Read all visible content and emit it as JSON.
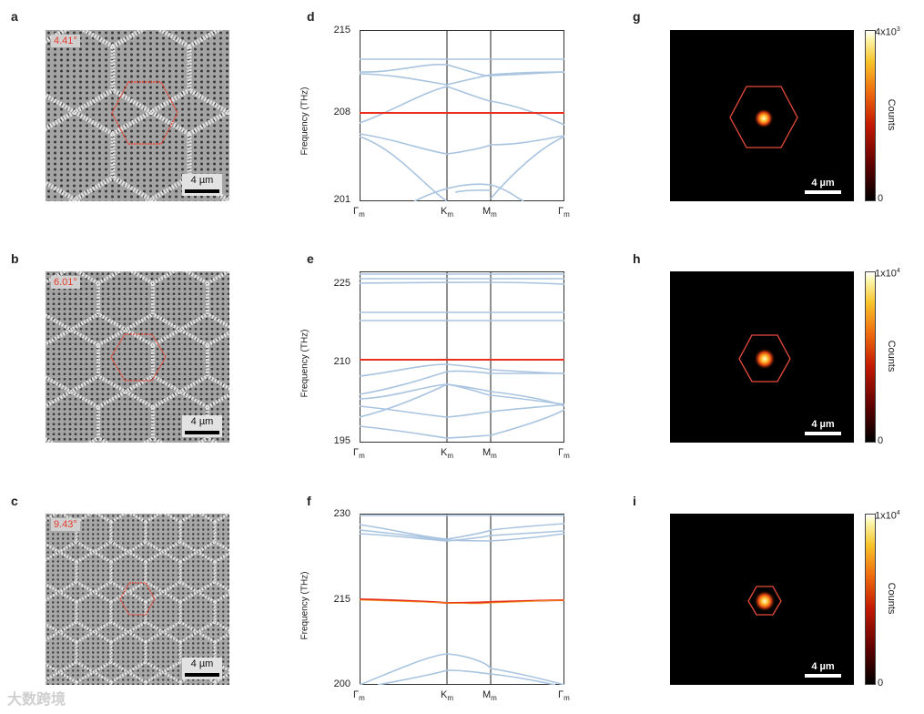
{
  "colors": {
    "band": "#a9c4e0",
    "mode": "#e8321f",
    "hexagon": "#e8493a"
  },
  "panels": {
    "sem": [
      {
        "label": "a",
        "angle": "4.41°",
        "scale": "4 µm",
        "hex_size": "large"
      },
      {
        "label": "b",
        "angle": "6.01°",
        "scale": "4 µm",
        "hex_size": "medium"
      },
      {
        "label": "c",
        "angle": "9.43°",
        "scale": "4 µm",
        "hex_size": "small"
      }
    ],
    "bands": [
      {
        "label": "d",
        "ylabel": "Frequency (THz)",
        "yticks": [
          "215",
          "208",
          "201"
        ],
        "xticks": [
          "Γ",
          "K",
          "M",
          "Γ"
        ],
        "xsub": "m",
        "ylim": [
          201,
          215
        ],
        "flat_band": 208
      },
      {
        "label": "e",
        "ylabel": "Frequency (THz)",
        "yticks": [
          "225",
          "210",
          "195"
        ],
        "xticks": [
          "Γ",
          "K",
          "M",
          "Γ"
        ],
        "xsub": "m",
        "ylim": [
          195,
          227
        ],
        "flat_band": 210
      },
      {
        "label": "f",
        "ylabel": "Frequency (THz)",
        "yticks": [
          "230",
          "215",
          "200"
        ],
        "xticks": [
          "Γ",
          "K",
          "M",
          "Γ"
        ],
        "xsub": "m",
        "ylim": [
          200,
          230
        ],
        "flat_band": 215
      }
    ],
    "maps": [
      {
        "label": "g",
        "cmax_base": "4x10",
        "cmax_exp": "3",
        "cmin": "0",
        "clabel": "Counts",
        "scale": "4 µm"
      },
      {
        "label": "h",
        "cmax_base": "1x10",
        "cmax_exp": "4",
        "cmin": "0",
        "clabel": "Counts",
        "scale": "4 µm"
      },
      {
        "label": "i",
        "cmax_base": "1x10",
        "cmax_exp": "4",
        "cmin": "0",
        "clabel": "Counts",
        "scale": "4 µm"
      }
    ]
  },
  "watermark": "大数跨境"
}
